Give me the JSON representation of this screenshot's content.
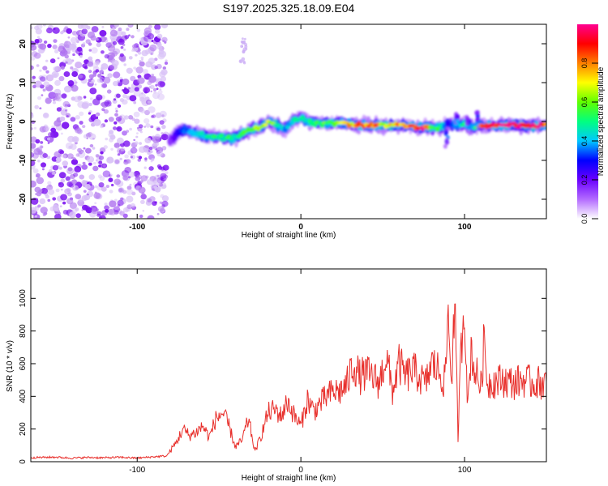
{
  "title": "S197.2025.325.18.09.E04",
  "chart_data": [
    {
      "type": "heatmap",
      "name": "spectrogram",
      "xlabel": "Height of straight line (km)",
      "ylabel": "Frequency (Hz)",
      "xlim": [
        -165,
        150
      ],
      "ylim": [
        -25,
        25
      ],
      "xticks": [
        -100,
        0,
        100
      ],
      "yticks": [
        -20,
        -10,
        0,
        10,
        20
      ],
      "noise_region_x": [
        -165,
        -82
      ],
      "ridge": {
        "x": [
          -80,
          -75,
          -70,
          -65,
          -60,
          -55,
          -50,
          -45,
          -40,
          -35,
          -30,
          -25,
          -20,
          -15,
          -10,
          -5,
          0,
          5,
          10,
          15,
          20,
          25,
          30,
          35,
          40,
          45,
          50,
          55,
          60,
          65,
          70,
          75,
          80,
          85,
          90,
          95,
          100,
          105,
          110,
          115,
          120,
          125,
          130,
          135,
          140,
          145,
          150
        ],
        "freq": [
          -5,
          -3,
          -2,
          -3,
          -3.5,
          -4,
          -4,
          -4.5,
          -4,
          -3,
          -2,
          -1.5,
          0,
          -1,
          -2,
          0,
          1,
          0,
          -0.5,
          -0.5,
          -0.5,
          -0.5,
          -0.5,
          -1,
          -1,
          -1,
          -1,
          -1,
          -1,
          -1,
          -1.5,
          -1.5,
          -1.5,
          -1.5,
          -0.5,
          -1,
          -0.5,
          -1.5,
          -1,
          -1,
          -1,
          -1,
          -1,
          -1,
          -1,
          -1,
          -1
        ],
        "amplitude": [
          0.15,
          0.3,
          0.35,
          0.4,
          0.45,
          0.5,
          0.5,
          0.55,
          0.5,
          0.55,
          0.6,
          0.7,
          0.75,
          0.5,
          0.4,
          0.45,
          0.5,
          0.5,
          0.55,
          0.6,
          0.6,
          0.7,
          0.75,
          0.8,
          0.85,
          0.85,
          0.7,
          0.75,
          0.8,
          0.85,
          0.9,
          0.95,
          0.6,
          0.5,
          0.3,
          0.4,
          0.5,
          0.35,
          0.9,
          0.95,
          0.98,
          1.0,
          1.0,
          0.98,
          0.95,
          0.95,
          0.9
        ]
      }
    },
    {
      "type": "colorbar",
      "name": "amplitude-colorbar",
      "label": "Normalized spectral amplitude",
      "range": [
        0,
        1
      ],
      "ticks": [
        "0.0",
        "0.2",
        "0.4",
        "0.6",
        "0.8"
      ],
      "colors": [
        "#ffffff",
        "#b36bff",
        "#6a00ff",
        "#0000ff",
        "#00c8ff",
        "#00ff80",
        "#60ff00",
        "#ffff00",
        "#ff8000",
        "#ff0000",
        "#ff0090"
      ]
    },
    {
      "type": "line",
      "name": "snr",
      "xlabel": "Height of straight line (km)",
      "ylabel": "SNR (10 * v/v)",
      "xlim": [
        -165,
        150
      ],
      "ylim": [
        0,
        1180
      ],
      "xticks": [
        -100,
        0,
        100
      ],
      "yticks": [
        0,
        200,
        400,
        600,
        800,
        1000
      ],
      "color": "#e8302c",
      "x": [
        -165,
        -150,
        -140,
        -130,
        -120,
        -110,
        -100,
        -90,
        -82,
        -76,
        -72,
        -68,
        -64,
        -60,
        -56,
        -52,
        -48,
        -44,
        -40,
        -36,
        -32,
        -28,
        -24,
        -20,
        -16,
        -12,
        -8,
        -4,
        0,
        4,
        8,
        12,
        16,
        20,
        24,
        28,
        32,
        36,
        40,
        44,
        48,
        52,
        56,
        60,
        64,
        68,
        72,
        76,
        80,
        84,
        88,
        90,
        92,
        94,
        96,
        98,
        100,
        102,
        104,
        106,
        108,
        110,
        112,
        114,
        118,
        124,
        130,
        136,
        142,
        150
      ],
      "y": [
        25,
        28,
        22,
        26,
        24,
        27,
        22,
        30,
        35,
        120,
        200,
        160,
        180,
        220,
        150,
        260,
        300,
        220,
        90,
        130,
        260,
        60,
        170,
        300,
        320,
        280,
        370,
        280,
        220,
        380,
        310,
        360,
        400,
        430,
        430,
        470,
        600,
        520,
        540,
        520,
        480,
        650,
        430,
        600,
        520,
        560,
        530,
        470,
        600,
        560,
        480,
        900,
        500,
        960,
        150,
        720,
        980,
        320,
        700,
        560,
        520,
        460,
        750,
        480,
        490,
        500,
        480,
        500,
        480,
        490
      ]
    }
  ]
}
